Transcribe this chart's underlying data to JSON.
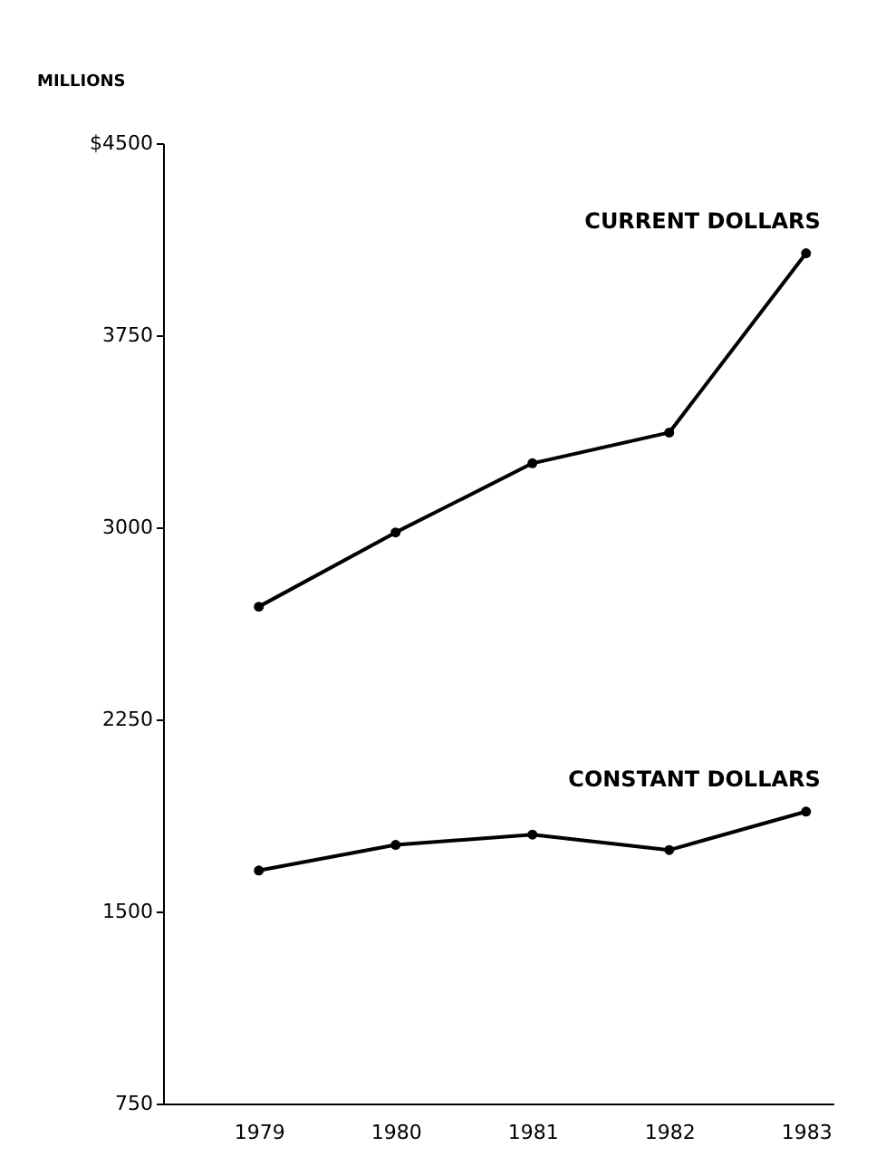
{
  "chart_data": {
    "type": "line",
    "ylabel": "MILLIONS",
    "categories": [
      "1979",
      "1980",
      "1981",
      "1982",
      "1983"
    ],
    "series": [
      {
        "name": "CURRENT DOLLARS",
        "color": "#000000",
        "values": [
          2690,
          2980,
          3250,
          3370,
          4070
        ]
      },
      {
        "name": "CONSTANT DOLLARS",
        "color": "#000000",
        "values": [
          1660,
          1760,
          1800,
          1740,
          1890
        ]
      }
    ],
    "ylim": [
      750,
      4500
    ],
    "yticks": [
      750,
      1500,
      2250,
      3000,
      3750,
      {
        "value": 4500,
        "label": "$4500"
      }
    ],
    "grid": false,
    "marker": "circle",
    "line_style": "solid"
  }
}
